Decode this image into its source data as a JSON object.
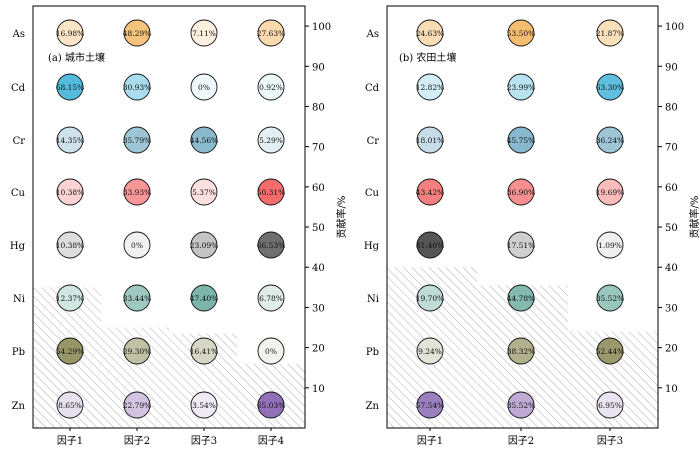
{
  "chart_data": [
    {
      "type": "bubble-matrix",
      "title": "(a) 城市土壤",
      "categories": [
        "因子1",
        "因子2",
        "因子3",
        "因子4"
      ],
      "rows": [
        "As",
        "Cd",
        "Cr",
        "Cu",
        "Hg",
        "Ni",
        "Pb",
        "Zn"
      ],
      "values": [
        [
          "16.98%",
          "48.29%",
          "7.11%",
          "27.63%"
        ],
        [
          "68.15%",
          "30.93%",
          "0%",
          "0.92%"
        ],
        [
          "14.35%",
          "35.79%",
          "44.56%",
          "5.29%"
        ],
        [
          "10.38%",
          "33.93%",
          "5.37%",
          "50.31%"
        ],
        [
          "10.38%",
          "0%",
          "23.09%",
          "66.53%"
        ],
        [
          "12.37%",
          "33.44%",
          "47.40%",
          "6.78%"
        ],
        [
          "54.29%",
          "29.30%",
          "16.41%",
          "0%"
        ],
        [
          "8.65%",
          "22.79%",
          "3.54%",
          "65.03%"
        ]
      ],
      "bar_values": [
        35,
        25,
        23.5,
        16
      ],
      "ylabel_right": "贡献率/%",
      "ylim": [
        0,
        105
      ],
      "yticks": [
        10,
        20,
        30,
        40,
        50,
        60,
        70,
        80,
        90,
        100
      ]
    },
    {
      "type": "bubble-matrix",
      "title": "(b) 农田土壤",
      "categories": [
        "因子1",
        "因子2",
        "因子3"
      ],
      "rows": [
        "As",
        "Cd",
        "Cr",
        "Cu",
        "Hg",
        "Ni",
        "Pb",
        "Zn"
      ],
      "values": [
        [
          "24.63%",
          "53.50%",
          "21.87%"
        ],
        [
          "12.82%",
          "23.99%",
          "63.30%"
        ],
        [
          "18.01%",
          "45.75%",
          "36.24%"
        ],
        [
          "43.42%",
          "36.90%",
          "19.69%"
        ],
        [
          "81.40%",
          "17.51%",
          "1.09%"
        ],
        [
          "19.70%",
          "44.78%",
          "35.52%"
        ],
        [
          "9.24%",
          "38.32%",
          "52.44%"
        ],
        [
          "57.54%",
          "35.52%",
          "6.95%"
        ]
      ],
      "bar_values": [
        40,
        35.5,
        24
      ],
      "ylabel_right": "贡献率/%",
      "ylim": [
        0,
        105
      ],
      "yticks": [
        10,
        20,
        30,
        40,
        50,
        60,
        70,
        80,
        90,
        100
      ]
    }
  ],
  "colors": {
    "As": "#f0a030",
    "Cd": "#3ab0d8",
    "Cr": "#3a8aac",
    "Cu": "#ee2020",
    "Hg": "#555555",
    "Ni": "#2e8a78",
    "Pb": "#6a6a28",
    "Zn": "#7a52a8"
  }
}
